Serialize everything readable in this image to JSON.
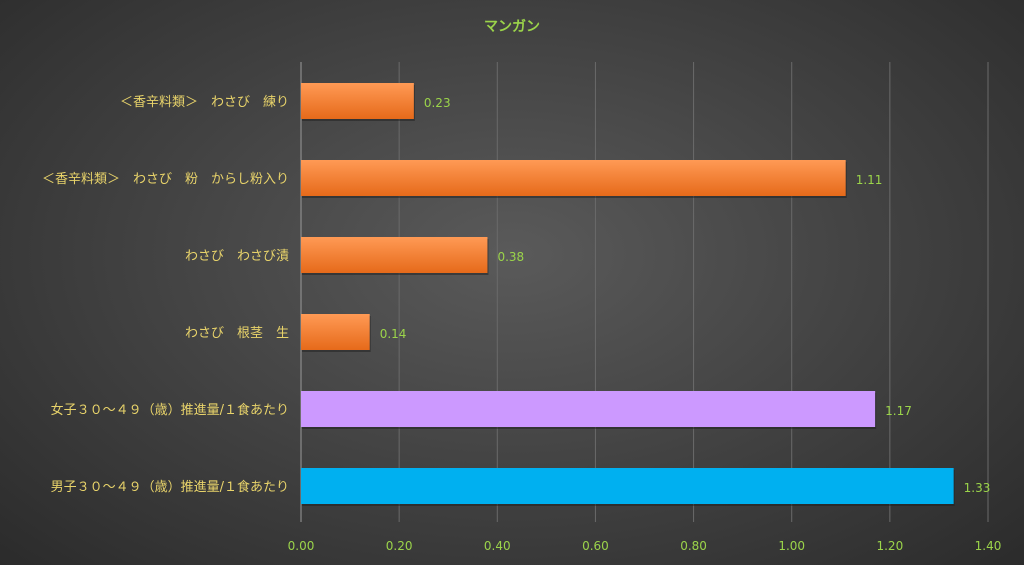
{
  "chart_data": {
    "type": "bar",
    "orientation": "horizontal",
    "title": "マンガン",
    "categories": [
      "＜香辛料類＞　わさび　練り",
      "＜香辛料類＞　わさび　粉　からし粉入り",
      "わさび　わさび漬",
      "わさび　根茎　生",
      "女子３０～４９（歳）推進量/１食あたり",
      "男子３０～４９（歳）推進量/１食あたり"
    ],
    "values": [
      0.23,
      1.11,
      0.38,
      0.14,
      1.17,
      1.33
    ],
    "data_labels": [
      "0.23",
      "1.11",
      "0.38",
      "0.14",
      "1.17",
      "1.33"
    ],
    "bar_colors": [
      "#f07828",
      "#f07828",
      "#f07828",
      "#f07828",
      "#cc99ff",
      "#00b0f0"
    ],
    "xlim": [
      0,
      1.4
    ],
    "xticks": [
      "0.00",
      "0.20",
      "0.40",
      "0.60",
      "0.80",
      "1.00",
      "1.20",
      "1.40"
    ],
    "grid": true,
    "legend": "none"
  }
}
